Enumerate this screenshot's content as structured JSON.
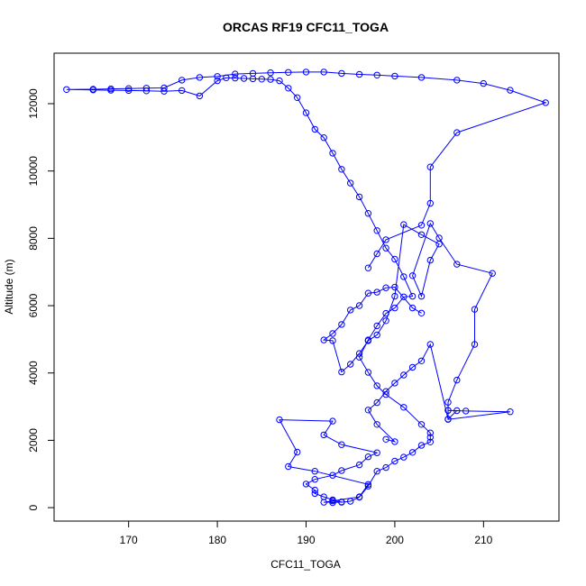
{
  "chart_data": {
    "type": "scatter",
    "title": "ORCAS RF19 CFC11_TOGA",
    "xlabel": "CFC11_TOGA",
    "ylabel": "Altitude (m)",
    "xlim": [
      161.6,
      218.5
    ],
    "ylim": [
      -400,
      13500
    ],
    "xticks": [
      170,
      180,
      190,
      200,
      210
    ],
    "yticks": [
      0,
      2000,
      4000,
      6000,
      8000,
      10000,
      12000
    ],
    "grid": false,
    "legend": "none",
    "series": [
      {
        "style": "line+points",
        "color": "#0000ff",
        "x": [
          193,
          194,
          192,
          193,
          196,
          197,
          191,
          188,
          189,
          187,
          193,
          192,
          194,
          198,
          197,
          196,
          194,
          193,
          191,
          190,
          191,
          191,
          192,
          193,
          194,
          195,
          196,
          197,
          198,
          199,
          200,
          201,
          202,
          203,
          204,
          204,
          204,
          203,
          201,
          199,
          198,
          197,
          196,
          197,
          198,
          199,
          200,
          201,
          202,
          201,
          200,
          199,
          198,
          197,
          196,
          195,
          194,
          193,
          192,
          191,
          190,
          189,
          188,
          187,
          186,
          185,
          184,
          183,
          182,
          181,
          180,
          178,
          176,
          174,
          172,
          170,
          168,
          166,
          163,
          166,
          168,
          170,
          172,
          174,
          176,
          178,
          180,
          182,
          184,
          186,
          188,
          190,
          192,
          194,
          196,
          198,
          200,
          203,
          207,
          210,
          213,
          217,
          207,
          204,
          204,
          203,
          199,
          198,
          197
        ],
        "y": [
          150,
          170,
          160,
          200,
          320,
          690,
          1080,
          1220,
          1650,
          2610,
          2570,
          2160,
          1870,
          1630,
          1510,
          1270,
          1100,
          960,
          840,
          700,
          520,
          420,
          320,
          230,
          160,
          190,
          310,
          640,
          1080,
          1190,
          1380,
          1500,
          1640,
          1850,
          1950,
          2090,
          2220,
          2470,
          2980,
          3360,
          3620,
          4020,
          4470,
          4980,
          5400,
          5770,
          5930,
          6260,
          6280,
          6860,
          7380,
          7710,
          8230,
          8740,
          9230,
          9640,
          10050,
          10530,
          10990,
          11240,
          11730,
          12180,
          12460,
          12680,
          12720,
          12730,
          12740,
          12750,
          12760,
          12770,
          12680,
          12230,
          12390,
          12370,
          12380,
          12390,
          12400,
          12410,
          12420,
          12430,
          12440,
          12450,
          12460,
          12470,
          12700,
          12780,
          12810,
          12880,
          12900,
          12920,
          12930,
          12940,
          12940,
          12900,
          12870,
          12850,
          12820,
          12780,
          12700,
          12600,
          12400,
          12030,
          11140,
          10120,
          9040,
          8390,
          7960,
          7540,
          7120
        ]
      },
      {
        "style": "line+points",
        "color": "#0000ff",
        "x": [
          199,
          200,
          198,
          197,
          198,
          199,
          200,
          201,
          202,
          203,
          204,
          206,
          207,
          206,
          206,
          208,
          213,
          206,
          206,
          207,
          209,
          209,
          211,
          207,
          205,
          204,
          202,
          203,
          204,
          205,
          203,
          201,
          200,
          199,
          198,
          197,
          196,
          195,
          194,
          193,
          192,
          193,
          194,
          195,
          196,
          197,
          198,
          199,
          200,
          202,
          203
        ],
        "y": [
          2030,
          1960,
          2470,
          2900,
          3120,
          3450,
          3700,
          3940,
          4170,
          4360,
          4850,
          2630,
          2880,
          2890,
          2890,
          2870,
          2850,
          2620,
          3130,
          3790,
          4850,
          5890,
          6960,
          7230,
          8010,
          8440,
          6890,
          6280,
          7350,
          7830,
          8110,
          8410,
          6280,
          5550,
          5130,
          4960,
          4580,
          4260,
          4030,
          4960,
          4980,
          5170,
          5440,
          5870,
          6000,
          6370,
          6400,
          6530,
          6550,
          5930,
          5780
        ]
      }
    ]
  }
}
